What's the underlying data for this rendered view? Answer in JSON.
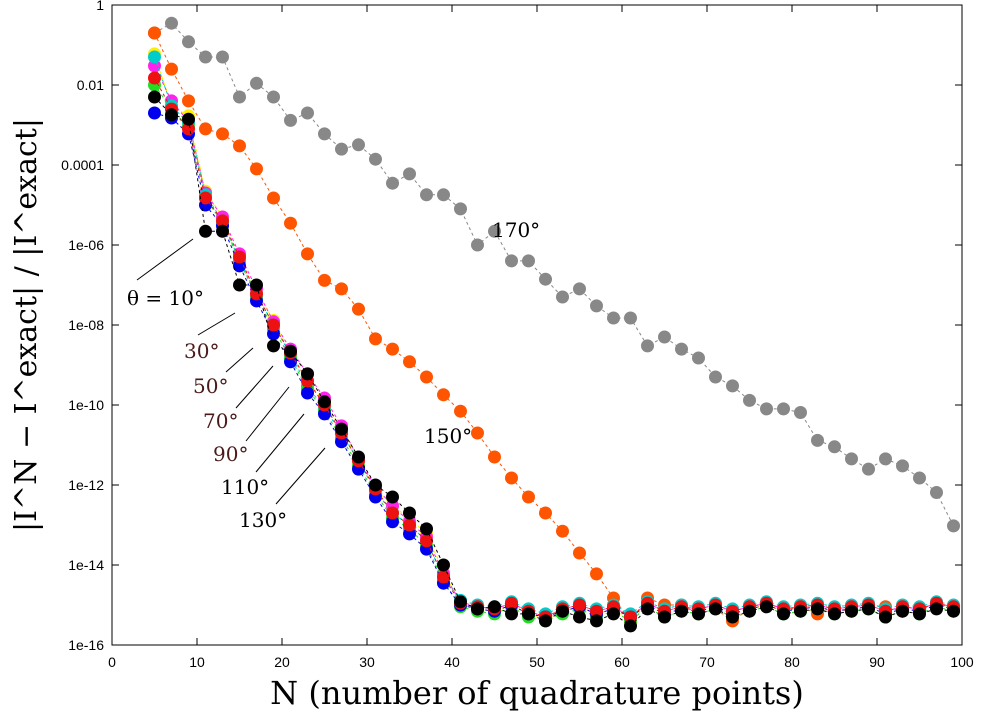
{
  "chart_data": {
    "type": "scatter",
    "title": "",
    "xlabel": "N (number of quadrature points)",
    "ylabel": "|I^N − I^exact| / |I^exact|",
    "x_range": [
      0,
      100
    ],
    "y_range": [
      1e-16,
      1
    ],
    "y_scale": "log",
    "x_ticks": [
      0,
      10,
      20,
      30,
      40,
      50,
      60,
      70,
      80,
      90,
      100
    ],
    "x_tick_labels": [
      "0",
      "10",
      "20",
      "30",
      "40",
      "50",
      "60",
      "70",
      "80",
      "90",
      "100"
    ],
    "y_ticks": [
      1,
      0.01,
      0.0001,
      1e-06,
      1e-08,
      1e-10,
      1e-12,
      1e-14,
      1e-16
    ],
    "y_tick_labels": [
      "1",
      "0.01",
      "0.0001",
      "1e-06",
      "1e-08",
      "1e-10",
      "1e-12",
      "1e-14",
      "1e-16"
    ],
    "grid": false,
    "legend": "none",
    "x": [
      5,
      7,
      9,
      11,
      13,
      15,
      17,
      19,
      21,
      23,
      25,
      27,
      29,
      31,
      33,
      35,
      37,
      39,
      41,
      43,
      45,
      47,
      49,
      51,
      53,
      55,
      57,
      59,
      61,
      63,
      65,
      67,
      69,
      71,
      73,
      75,
      77,
      79,
      81,
      83,
      85,
      87,
      89,
      91,
      93,
      95,
      97,
      99
    ],
    "series": [
      {
        "color": "#888888",
        "values": [
          0.2,
          0.35,
          0.12,
          0.05,
          0.05,
          0.005,
          0.011,
          0.005,
          0.0013,
          0.002,
          0.0006,
          0.00025,
          0.00032,
          0.00014,
          3.5e-05,
          6e-05,
          1.8e-05,
          1.8e-05,
          8e-06,
          1e-06,
          2.2e-06,
          4e-07,
          4e-07,
          1.4e-07,
          5e-08,
          8e-08,
          3e-08,
          1.5e-08,
          1.5e-08,
          3e-09,
          5e-09,
          2.5e-09,
          1.5e-09,
          5e-10,
          3e-10,
          1.3e-10,
          8e-11,
          8e-11,
          6.5e-11,
          1.3e-11,
          9e-12,
          4.5e-12,
          2.5e-12,
          4.5e-12,
          3e-12,
          1.5e-12,
          6.5e-13,
          9.5e-14
        ]
      },
      {
        "color": "#ff5500",
        "values": [
          0.2,
          0.025,
          0.004,
          0.0008,
          0.0006,
          0.0003,
          8e-05,
          1.5e-05,
          3.5e-06,
          6e-07,
          1.3e-07,
          8e-08,
          2.5e-08,
          4.5e-09,
          2.5e-09,
          1.2e-09,
          5e-10,
          1.8e-10,
          7e-11,
          2e-11,
          5e-12,
          1.5e-12,
          5e-13,
          2e-13,
          7e-14,
          2e-14,
          6e-15,
          1.5e-15,
          4e-16,
          1.5e-15,
          1e-15,
          1e-15,
          6e-16,
          8e-16,
          4e-16,
          8e-16,
          1e-15,
          7e-16,
          9e-16,
          6e-16,
          8e-16,
          7e-16,
          1e-15,
          9e-16,
          7e-16,
          8e-16,
          1e-15,
          9e-16
        ]
      },
      {
        "color": "#ffee00",
        "values": [
          0.06,
          0.003,
          0.0017,
          2.2e-05,
          5e-06,
          4.5e-07,
          7e-08,
          1.3e-08,
          2e-09,
          4e-10,
          1.2e-10,
          2.5e-11,
          4e-12,
          8e-13,
          3e-13,
          1.5e-13,
          6e-14,
          7e-15,
          1.1e-15,
          8e-16,
          7e-16,
          1e-15,
          6e-16,
          4.5e-16,
          7e-16,
          9e-16,
          6e-16,
          8e-16,
          4e-16,
          1e-15,
          6e-16,
          8e-16,
          7e-16,
          9e-16,
          6e-16,
          8e-16,
          1e-15,
          7e-16,
          8e-16,
          9e-16,
          7e-16,
          8e-16,
          9e-16,
          6e-16,
          8e-16,
          7e-16,
          1e-15,
          8e-16
        ]
      },
      {
        "color": "#ff22ee",
        "values": [
          0.03,
          0.004,
          0.0012,
          2e-05,
          5e-06,
          6e-07,
          8e-08,
          1.2e-08,
          2.5e-09,
          6e-10,
          1.5e-10,
          3e-11,
          4.5e-12,
          9e-13,
          3e-13,
          1.2e-13,
          5e-14,
          6e-15,
          1.2e-15,
          9e-16,
          8e-16,
          1.1e-15,
          7e-16,
          5e-16,
          8e-16,
          1e-15,
          7e-16,
          9e-16,
          5e-16,
          1.1e-15,
          7e-16,
          9e-16,
          8e-16,
          1e-15,
          7e-16,
          9e-16,
          1.1e-15,
          8e-16,
          9e-16,
          1e-15,
          8e-16,
          9e-16,
          1e-15,
          7e-16,
          9e-16,
          8e-16,
          1.1e-15,
          9e-16
        ]
      },
      {
        "color": "#00cccc",
        "values": [
          0.05,
          0.003,
          0.0011,
          1.8e-05,
          4e-06,
          4e-07,
          6e-08,
          1e-08,
          1.8e-09,
          3e-10,
          8e-11,
          2e-11,
          4e-12,
          7e-13,
          2e-13,
          1e-13,
          4e-14,
          5e-15,
          1.3e-15,
          1e-15,
          9e-16,
          1.2e-15,
          8e-16,
          6e-16,
          9e-16,
          1.1e-15,
          8e-16,
          1e-15,
          6e-16,
          1.2e-15,
          8e-16,
          1e-15,
          9e-16,
          1.1e-15,
          8e-16,
          1e-15,
          1.2e-15,
          9e-16,
          1e-15,
          1.1e-15,
          9e-16,
          1e-15,
          1.1e-15,
          8e-16,
          1e-15,
          9e-16,
          1.2e-15,
          1e-15
        ]
      },
      {
        "color": "#22dd22",
        "values": [
          0.01,
          0.0025,
          0.0009,
          1.5e-05,
          3.5e-06,
          4e-07,
          5e-08,
          8e-09,
          1.5e-09,
          2.5e-10,
          7e-11,
          1.5e-11,
          3e-12,
          6e-13,
          1.5e-13,
          8e-14,
          3e-14,
          4e-15,
          9e-16,
          7e-16,
          6e-16,
          9e-16,
          5e-16,
          4e-16,
          6e-16,
          8e-16,
          5e-16,
          7e-16,
          4e-16,
          9e-16,
          5e-16,
          7e-16,
          6e-16,
          8e-16,
          5e-16,
          7e-16,
          9e-16,
          6e-16,
          7e-16,
          8e-16,
          6e-16,
          7e-16,
          8e-16,
          5e-16,
          7e-16,
          6e-16,
          9e-16,
          7e-16
        ]
      },
      {
        "color": "#0000ee",
        "values": [
          0.002,
          0.0015,
          0.0006,
          1e-05,
          3e-06,
          3e-07,
          4e-08,
          6e-09,
          1.2e-09,
          2e-10,
          6e-11,
          1.2e-11,
          2.5e-12,
          5e-13,
          1.2e-13,
          6e-14,
          2.5e-14,
          3.5e-15,
          1e-15,
          8e-16,
          7e-16,
          1e-15,
          6e-16,
          5e-16,
          7e-16,
          9e-16,
          6e-16,
          8e-16,
          5e-16,
          1e-15,
          6e-16,
          8e-16,
          7e-16,
          9e-16,
          6e-16,
          8e-16,
          1e-15,
          7e-16,
          8e-16,
          9e-16,
          7e-16,
          8e-16,
          9e-16,
          6e-16,
          8e-16,
          7e-16,
          1e-15,
          8e-16
        ]
      },
      {
        "color": "#ee1111",
        "values": [
          0.015,
          0.0025,
          0.0008,
          1.5e-05,
          4e-06,
          5e-07,
          6e-08,
          1e-08,
          2e-09,
          4e-10,
          1e-10,
          2e-11,
          4e-12,
          8e-13,
          2e-13,
          1e-13,
          4e-14,
          5e-15,
          1.1e-15,
          9e-16,
          8e-16,
          1.1e-15,
          7e-16,
          5e-16,
          8e-16,
          1e-15,
          7e-16,
          9e-16,
          5e-16,
          1.1e-15,
          7e-16,
          9e-16,
          8e-16,
          1e-15,
          7e-16,
          9e-16,
          1.1e-15,
          8e-16,
          9e-16,
          1e-15,
          8e-16,
          9e-16,
          1e-15,
          7e-16,
          9e-16,
          8e-16,
          1.1e-15,
          9e-16
        ]
      },
      {
        "color": "#000000",
        "values": [
          0.005,
          0.0018,
          0.0014,
          2.2e-06,
          2.2e-06,
          1e-07,
          1e-07,
          3e-09,
          2.2e-09,
          6e-10,
          1.2e-10,
          2.5e-11,
          5e-12,
          1e-12,
          5e-13,
          2e-13,
          8e-14,
          1e-14,
          1.2e-15,
          8e-16,
          9e-16,
          6e-16,
          6e-16,
          4e-16,
          7e-16,
          5e-16,
          4e-16,
          6e-16,
          3e-16,
          8e-16,
          5e-16,
          7e-16,
          6e-16,
          8e-16,
          5e-16,
          7e-16,
          9e-16,
          6e-16,
          7e-16,
          8e-16,
          6e-16,
          7e-16,
          8e-16,
          5e-16,
          7e-16,
          6e-16,
          8e-16,
          7e-16
        ]
      }
    ],
    "annotations": [
      {
        "text": "θ = 10°",
        "color": "#000000"
      },
      {
        "text": "30°",
        "color": "#4a1a1a"
      },
      {
        "text": "50°",
        "color": "#4a1a1a"
      },
      {
        "text": "70°",
        "color": "#4a1a1a"
      },
      {
        "text": "90°",
        "color": "#4a1a1a"
      },
      {
        "text": "110°",
        "color": "#000000"
      },
      {
        "text": "130°",
        "color": "#000000"
      },
      {
        "text": "150°",
        "color": "#000000"
      },
      {
        "text": "170°",
        "color": "#000000"
      }
    ]
  }
}
